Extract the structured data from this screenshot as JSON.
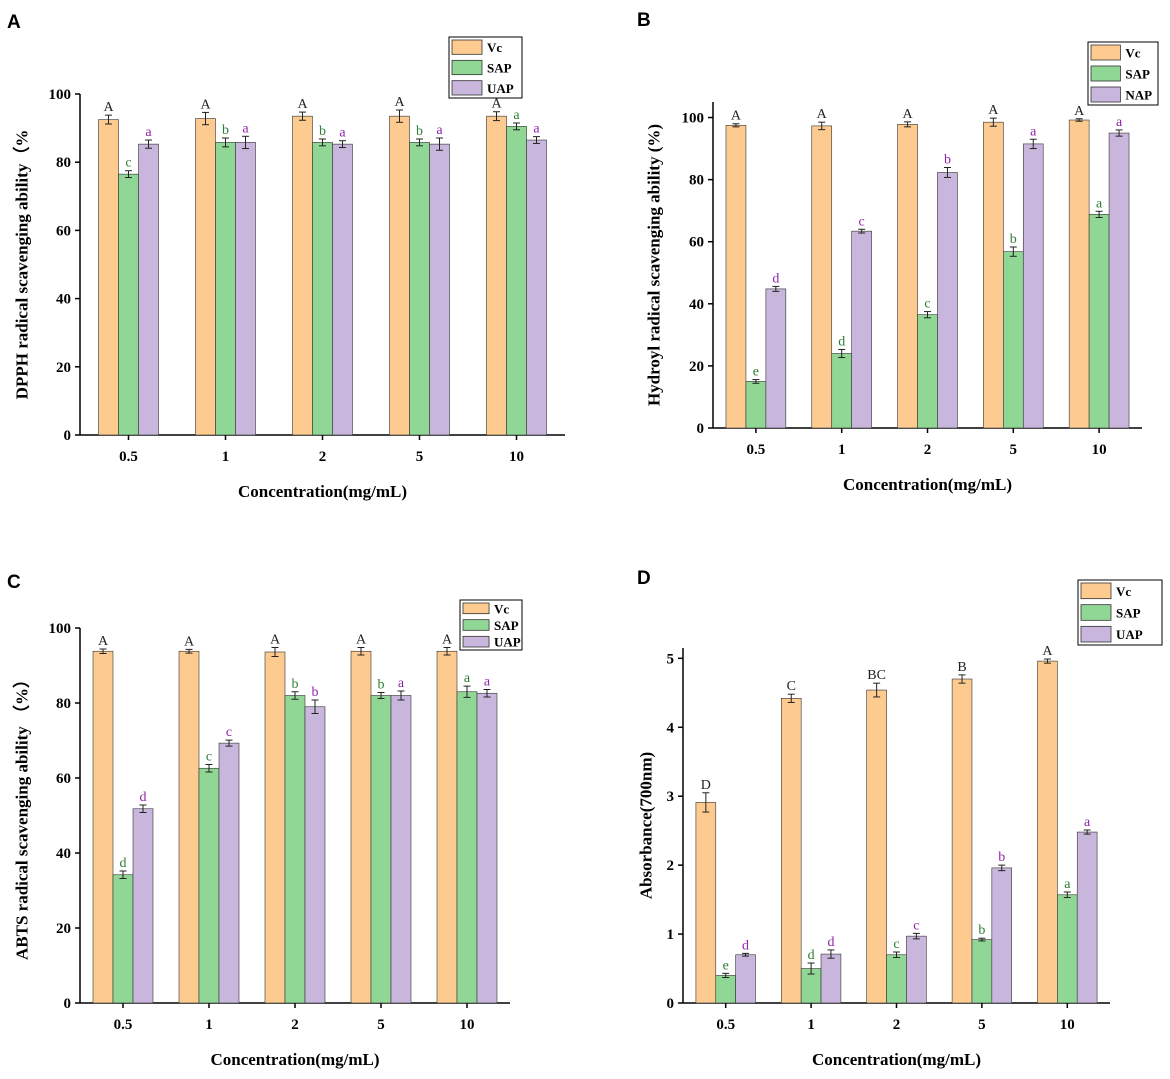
{
  "colors": {
    "Vc": "#FDCB8F",
    "SAP": "#90D795",
    "UAP": "#C8B6DC",
    "NAP": "#C8B6DC",
    "label_lower": "#2E7D32",
    "label_upper": "#8E24AA",
    "label_vc": "#222222"
  },
  "chart_data": [
    {
      "panel": "A",
      "type": "bar",
      "ylabel": "DPPH radical scavenging ability（%",
      "xlabel": "Concentration(mg/mL)",
      "categories": [
        "0.5",
        "1",
        "2",
        "5",
        "10"
      ],
      "ylim": [
        0,
        100
      ],
      "yticks": [
        0,
        20,
        40,
        60,
        80,
        100
      ],
      "legend_position": "top-right",
      "series": [
        {
          "name": "Vc",
          "values": [
            92.5,
            92.8,
            93.5,
            93.5,
            93.5
          ],
          "errors": [
            1.3,
            1.8,
            1.2,
            1.8,
            1.3
          ],
          "labels": [
            "A",
            "A",
            "A",
            "A",
            "A"
          ]
        },
        {
          "name": "SAP",
          "values": [
            76.5,
            85.8,
            85.8,
            85.8,
            90.5
          ],
          "errors": [
            1.0,
            1.3,
            1.0,
            1.0,
            1.0
          ],
          "labels": [
            "c",
            "b",
            "b",
            "b",
            "a"
          ]
        },
        {
          "name": "UAP",
          "values": [
            85.3,
            85.8,
            85.3,
            85.3,
            86.5
          ],
          "errors": [
            1.2,
            1.8,
            1.0,
            1.8,
            1.0
          ],
          "labels": [
            "a",
            "a",
            "a",
            "a",
            "a"
          ]
        }
      ]
    },
    {
      "panel": "B",
      "type": "bar",
      "ylabel": "Hydroyl radical scavenging ability (%)",
      "xlabel": "Concentration(mg/mL)",
      "categories": [
        "0.5",
        "1",
        "2",
        "5",
        "10"
      ],
      "ylim": [
        0,
        105
      ],
      "yticks": [
        0,
        20,
        40,
        60,
        80,
        100
      ],
      "legend_position": "top-right",
      "series": [
        {
          "name": "Vc",
          "values": [
            97.5,
            97.3,
            97.8,
            98.5,
            99.2
          ],
          "errors": [
            0.5,
            1.2,
            0.8,
            1.3,
            0.4
          ],
          "labels": [
            "A",
            "A",
            "A",
            "A",
            "A"
          ]
        },
        {
          "name": "SAP",
          "values": [
            15.0,
            24.0,
            36.5,
            56.8,
            68.8
          ],
          "errors": [
            0.6,
            1.3,
            1.0,
            1.5,
            1.0
          ],
          "labels": [
            "e",
            "d",
            "c",
            "b",
            "a"
          ]
        },
        {
          "name": "NAP",
          "values": [
            44.8,
            63.4,
            82.3,
            91.5,
            95.0
          ],
          "errors": [
            0.8,
            0.6,
            1.6,
            1.5,
            1.0
          ],
          "labels": [
            "d",
            "c",
            "b",
            "a",
            "a"
          ]
        }
      ]
    },
    {
      "panel": "C",
      "type": "bar",
      "ylabel": "ABTS radical scavenging ability （%）",
      "xlabel": "Concentration(mg/mL)",
      "categories": [
        "0.5",
        "1",
        "2",
        "5",
        "10"
      ],
      "ylim": [
        0,
        100
      ],
      "yticks": [
        0,
        20,
        40,
        60,
        80,
        100
      ],
      "legend_position": "top-right",
      "series": [
        {
          "name": "Vc",
          "values": [
            93.8,
            93.8,
            93.6,
            93.8,
            93.8
          ],
          "errors": [
            0.6,
            0.5,
            1.2,
            1.0,
            1.0
          ],
          "labels": [
            "A",
            "A",
            "A",
            "A",
            "A"
          ]
        },
        {
          "name": "SAP",
          "values": [
            34.2,
            62.6,
            82.0,
            82.0,
            83.0
          ],
          "errors": [
            1.0,
            1.0,
            1.0,
            0.8,
            1.5
          ],
          "labels": [
            "d",
            "c",
            "b",
            "b",
            "a"
          ]
        },
        {
          "name": "UAP",
          "values": [
            51.8,
            69.3,
            79.0,
            82.0,
            82.6
          ],
          "errors": [
            1.0,
            0.8,
            1.8,
            1.2,
            1.0
          ],
          "labels": [
            "d",
            "c",
            "b",
            "a",
            "a"
          ]
        }
      ]
    },
    {
      "panel": "D",
      "type": "bar",
      "ylabel": "Absorbance(700nm)",
      "xlabel": "Concentration(mg/mL)",
      "categories": [
        "0.5",
        "1",
        "2",
        "5",
        "10"
      ],
      "ylim": [
        0,
        5.15
      ],
      "yticks": [
        0,
        1,
        2,
        3,
        4,
        5
      ],
      "legend_position": "top-right",
      "series": [
        {
          "name": "Vc",
          "values": [
            2.91,
            4.42,
            4.54,
            4.7,
            4.96
          ],
          "errors": [
            0.14,
            0.06,
            0.1,
            0.06,
            0.03
          ],
          "labels": [
            "D",
            "C",
            "BC",
            "B",
            "A"
          ]
        },
        {
          "name": "SAP",
          "values": [
            0.4,
            0.5,
            0.7,
            0.92,
            1.57
          ],
          "errors": [
            0.03,
            0.08,
            0.04,
            0.02,
            0.04
          ],
          "labels": [
            "e",
            "d",
            "c",
            "b",
            "a"
          ]
        },
        {
          "name": "UAP",
          "values": [
            0.7,
            0.71,
            0.97,
            1.96,
            2.48
          ],
          "errors": [
            0.02,
            0.06,
            0.04,
            0.04,
            0.03
          ],
          "labels": [
            "d",
            "d",
            "c",
            "b",
            "a"
          ]
        }
      ]
    }
  ]
}
